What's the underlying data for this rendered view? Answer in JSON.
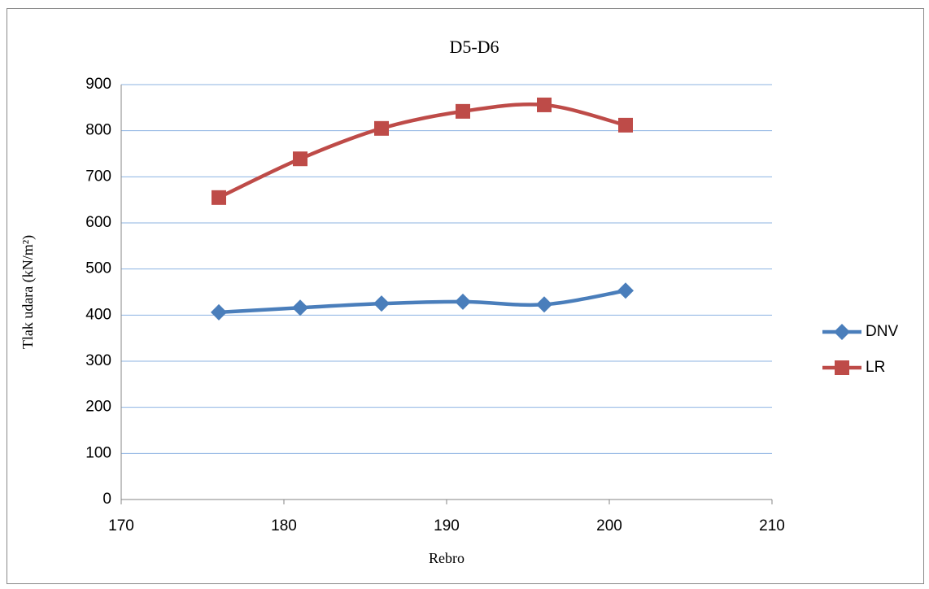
{
  "chart_data": {
    "type": "line",
    "title": "D5-D6",
    "x_label": "Rebro",
    "y_label": "Tlak udara (kN/m²)",
    "x": [
      176,
      181,
      186,
      191,
      196,
      201
    ],
    "series": [
      {
        "name": "DNV",
        "color": "#4a7ebb",
        "marker": "diamond",
        "values": [
          406,
          416,
          425,
          429,
          423,
          453
        ]
      },
      {
        "name": "LR",
        "color": "#be4b48",
        "marker": "square",
        "values": [
          655,
          739,
          805,
          842,
          856,
          812
        ]
      }
    ],
    "xlim": [
      170,
      210
    ],
    "xticks": [
      170,
      180,
      190,
      200,
      210
    ],
    "ylim": [
      0,
      900
    ],
    "yticks": [
      0,
      100,
      200,
      300,
      400,
      500,
      600,
      700,
      800,
      900
    ],
    "grid": true,
    "smooth": true,
    "legend": "right"
  }
}
